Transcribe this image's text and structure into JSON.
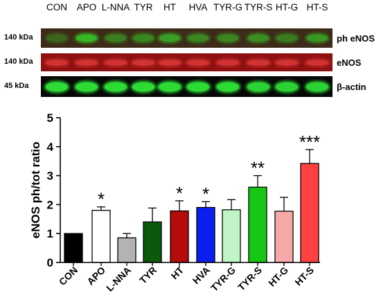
{
  "lanes": [
    "CON",
    "APO",
    "L-NNA",
    "TYR",
    "HT",
    "HVA",
    "TYR-G",
    "TYR-S",
    "HT-G",
    "HT-S"
  ],
  "blots": [
    {
      "kda": "140 kDa",
      "name": "ph eNOS",
      "band_color": "#38d028",
      "background": "#3d2a18",
      "band_intensity": [
        0.35,
        0.85,
        0.5,
        0.55,
        0.7,
        0.55,
        0.55,
        0.6,
        0.5,
        0.65
      ]
    },
    {
      "kda": "140 kDa",
      "name": "eNOS",
      "band_color": "#ff4a4a",
      "background": "#8e1111",
      "band_intensity": [
        0.6,
        0.6,
        0.6,
        0.6,
        0.6,
        0.6,
        0.6,
        0.6,
        0.6,
        0.6
      ]
    },
    {
      "kda": "45 kDa",
      "name": "β-actin",
      "band_color": "#2ee838",
      "background": "#070707",
      "band_intensity": [
        0.95,
        0.95,
        0.95,
        0.95,
        0.95,
        0.95,
        0.95,
        0.9,
        0.9,
        0.9
      ]
    }
  ],
  "chart_data": {
    "type": "bar",
    "categories": [
      "CON",
      "APO",
      "L-NNA",
      "TYR",
      "HT",
      "HVA",
      "TYR-G",
      "TYR-S",
      "HT-G",
      "HT-S"
    ],
    "values": [
      1.0,
      1.8,
      0.85,
      1.4,
      1.78,
      1.9,
      1.82,
      2.6,
      1.77,
      3.42
    ],
    "errors": [
      0.0,
      0.12,
      0.15,
      0.48,
      0.35,
      0.2,
      0.35,
      0.4,
      0.48,
      0.48
    ],
    "significance": [
      "",
      "*",
      "",
      "",
      "*",
      "*",
      "",
      "**",
      "",
      "***"
    ],
    "colors": [
      "#000000",
      "#ffffff",
      "#b3b3b3",
      "#0b5a0b",
      "#b50b0b",
      "#0b1ef0",
      "#bff5c6",
      "#16c716",
      "#f7a8a8",
      "#ff4141"
    ],
    "ylabel": "eNOS ph/tot ratio",
    "xlabel": "",
    "ylim": [
      0,
      5
    ],
    "yticks": [
      "0",
      "1",
      "2",
      "3",
      "4",
      "5"
    ],
    "grid": false
  }
}
